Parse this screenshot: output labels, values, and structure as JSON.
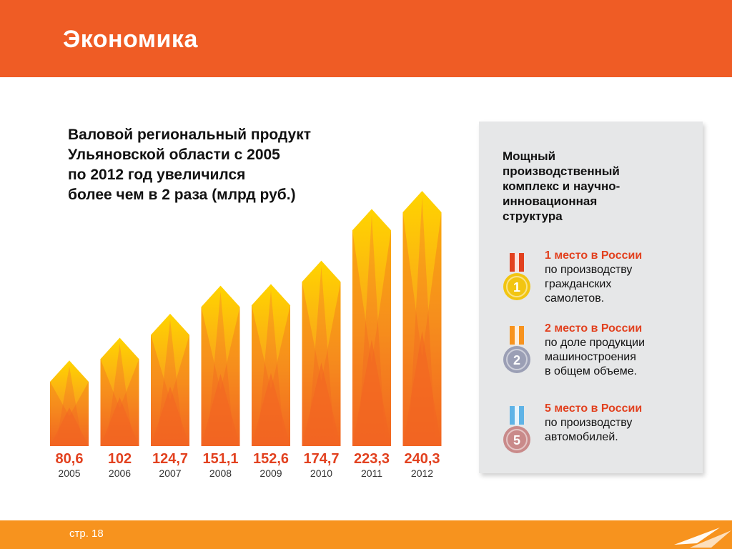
{
  "header": {
    "title": "Экономика"
  },
  "heading": {
    "lines": [
      "Валовой региональный продукт",
      "Ульяновской области с 2005",
      "по 2012 год увеличился",
      "более чем в 2 раза (млрд руб.)"
    ]
  },
  "chart_data": {
    "type": "bar",
    "title": "",
    "xlabel": "",
    "ylabel": "",
    "ylim": [
      0,
      250
    ],
    "categories": [
      "2005",
      "2006",
      "2007",
      "2008",
      "2009",
      "2010",
      "2011",
      "2012"
    ],
    "values": [
      80.6,
      102,
      124.7,
      151.1,
      152.6,
      174.7,
      223.3,
      240.3
    ],
    "value_labels": [
      "80,6",
      "102",
      "124,7",
      "151,1",
      "152,6",
      "174,7",
      "223,3",
      "240,3"
    ],
    "grid": false,
    "colors": {
      "tip": "#ffd400",
      "mid": "#f9a51a",
      "base": "#f26522",
      "value_label": "#e2411f",
      "year_label": "#333333"
    }
  },
  "panel": {
    "title_lines": [
      "Мощный",
      "производственный",
      "комплекс и научно-",
      "инновационная",
      "структура"
    ],
    "awards": [
      {
        "medal_number": "1",
        "medal_color": "#f2c511",
        "ribbon_color": "#e2411f",
        "rank": "1 место в России",
        "lines": [
          "по производству",
          "гражданских",
          "самолетов."
        ]
      },
      {
        "medal_number": "2",
        "medal_color": "#9b9fb5",
        "ribbon_color": "#f7931e",
        "rank": "2 место в России",
        "lines": [
          "по доле продукции",
          "машиностроения",
          "в общем объеме."
        ]
      },
      {
        "medal_number": "5",
        "medal_color": "#c98a8a",
        "ribbon_color": "#5fb3e6",
        "rank": "5 место в России",
        "lines": [
          "по производству",
          "автомобилей."
        ]
      }
    ]
  },
  "footer": {
    "page": "стр. 18"
  }
}
